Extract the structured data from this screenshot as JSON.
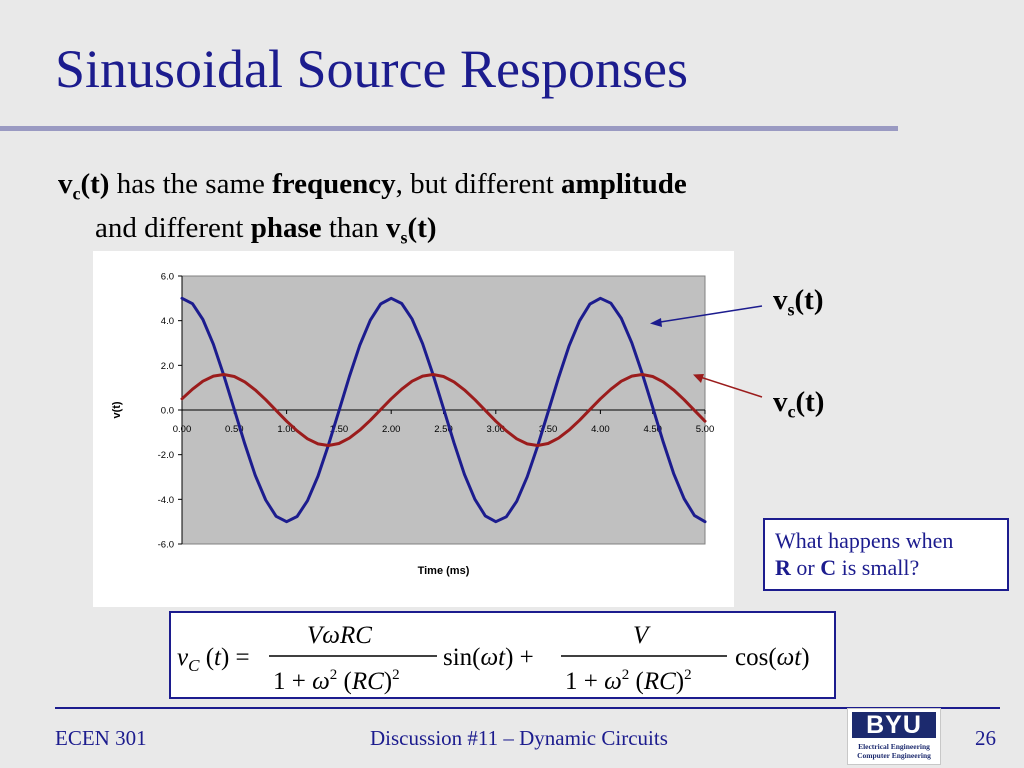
{
  "slide": {
    "title": "Sinusoidal Source Responses",
    "bullet": {
      "vc_base": "v",
      "vc_sub": "c",
      "vc_arg": "(t)",
      "text1": " has the same ",
      "word_frequency": "frequency",
      "text2": ", but different ",
      "word_amplitude": "amplitude",
      "text3": "and different ",
      "word_phase": "phase",
      "text4": " than ",
      "vs_base": "v",
      "vs_sub": "s",
      "vs_arg": "(t)"
    },
    "label_vs": {
      "base": "v",
      "sub": "s",
      "arg": "(t)"
    },
    "label_vc": {
      "base": "v",
      "sub": "c",
      "arg": "(t)"
    },
    "question": {
      "line1": "What happens when",
      "r": "R",
      "or": " or ",
      "c": "C",
      "rest": " is small?"
    },
    "footer": {
      "left": "ECEN 301",
      "center": "Discussion #11 – Dynamic Circuits",
      "page": "26"
    },
    "logo": {
      "name": "BYU",
      "line1": "Electrical Engineering",
      "line2": "Computer Engineering"
    }
  },
  "colors": {
    "title": "#1c1c8e",
    "vs_line": "#1c1c8e",
    "vc_line": "#9b1c1c",
    "plot_bg": "#c0c0c0"
  },
  "chart_data": {
    "type": "line",
    "title": "",
    "xlabel": "Time (ms)",
    "ylabel": "v(t)",
    "xlim": [
      0,
      5
    ],
    "ylim": [
      -6,
      6
    ],
    "x_ticks": [
      "0.00",
      "0.50",
      "1.00",
      "1.50",
      "2.00",
      "2.50",
      "3.00",
      "3.50",
      "4.00",
      "4.50",
      "5.00"
    ],
    "y_ticks": [
      "6.0",
      "4.0",
      "2.0",
      "0.0",
      "-2.0",
      "-4.0",
      "-6.0"
    ],
    "grid": false,
    "series": [
      {
        "name": "vs(t)",
        "color": "#1c1c8e",
        "x": [
          0,
          0.1,
          0.2,
          0.3,
          0.4,
          0.5,
          0.6,
          0.7,
          0.8,
          0.9,
          1.0,
          1.1,
          1.2,
          1.3,
          1.4,
          1.5,
          1.6,
          1.7,
          1.8,
          1.9,
          2.0,
          2.1,
          2.2,
          2.3,
          2.4,
          2.5,
          2.6,
          2.7,
          2.8,
          2.9,
          3.0,
          3.1,
          3.2,
          3.3,
          3.4,
          3.5,
          3.6,
          3.7,
          3.8,
          3.9,
          4.0,
          4.1,
          4.2,
          4.3,
          4.4,
          4.5,
          4.6,
          4.7,
          4.8,
          4.9,
          5.0
        ],
        "y": [
          5.0,
          4.76,
          4.05,
          2.94,
          1.55,
          0.02,
          -1.52,
          -2.92,
          -4.03,
          -4.76,
          -5.0,
          -4.77,
          -4.06,
          -2.96,
          -1.57,
          -0.05,
          1.5,
          2.9,
          4.02,
          4.75,
          5.0,
          4.77,
          4.07,
          2.97,
          1.59,
          0.07,
          -1.47,
          -2.88,
          -4.0,
          -4.74,
          -5.0,
          -4.78,
          -4.09,
          -2.99,
          -1.62,
          -0.09,
          1.45,
          2.86,
          3.99,
          4.74,
          5.0,
          4.78,
          4.1,
          3.01,
          1.64,
          0.12,
          -1.43,
          -2.84,
          -3.97,
          -4.73,
          -5.0
        ]
      },
      {
        "name": "vc(t)",
        "color": "#9b1c1c",
        "x": [
          0,
          0.1,
          0.2,
          0.3,
          0.4,
          0.5,
          0.6,
          0.7,
          0.8,
          0.9,
          1.0,
          1.1,
          1.2,
          1.3,
          1.4,
          1.5,
          1.6,
          1.7,
          1.8,
          1.9,
          2.0,
          2.1,
          2.2,
          2.3,
          2.4,
          2.5,
          2.6,
          2.7,
          2.8,
          2.9,
          3.0,
          3.1,
          3.2,
          3.3,
          3.4,
          3.5,
          3.6,
          3.7,
          3.8,
          3.9,
          4.0,
          4.1,
          4.2,
          4.3,
          4.4,
          4.5,
          4.6,
          4.7,
          4.8,
          4.9,
          5.0
        ],
        "y": [
          0.5,
          0.93,
          1.29,
          1.52,
          1.59,
          1.5,
          1.26,
          0.9,
          0.46,
          -0.02,
          -0.5,
          -0.93,
          -1.29,
          -1.52,
          -1.59,
          -1.5,
          -1.26,
          -0.9,
          -0.46,
          0.02,
          0.5,
          0.93,
          1.29,
          1.52,
          1.59,
          1.5,
          1.26,
          0.9,
          0.46,
          -0.02,
          -0.5,
          -0.93,
          -1.29,
          -1.52,
          -1.59,
          -1.5,
          -1.26,
          -0.9,
          -0.46,
          0.02,
          0.5,
          0.93,
          1.29,
          1.52,
          1.59,
          1.5,
          1.26,
          0.9,
          0.46,
          -0.02,
          -0.5
        ]
      }
    ]
  },
  "formula": {
    "lhs": "vC(t) =",
    "num1": "VωRC",
    "den1": "1 + ω²(RC)²",
    "f1": "sin(ωt) +",
    "num2": "V",
    "den2": "1 + ω²(RC)²",
    "f2": "cos(ωt)"
  }
}
